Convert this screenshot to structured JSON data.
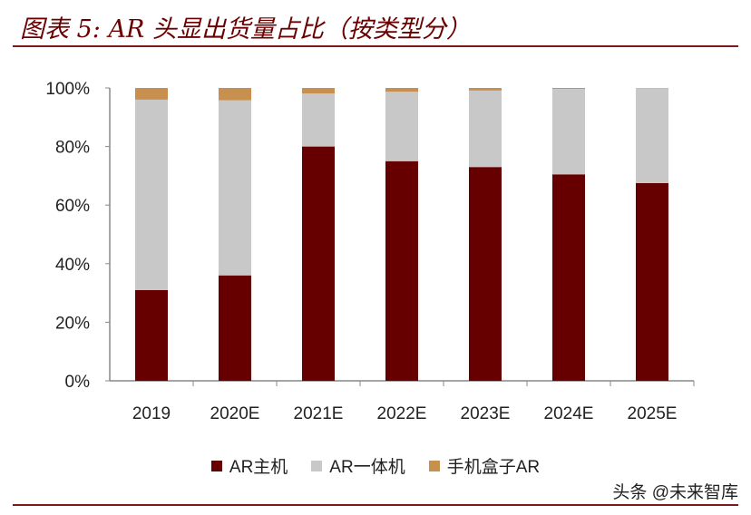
{
  "title": "图表 5: AR 头显出货量占比（按类型分）",
  "watermark": "头条 @未来智库",
  "chart_data": {
    "type": "bar",
    "stacked": true,
    "categories": [
      "2019",
      "2020E",
      "2021E",
      "2022E",
      "2023E",
      "2024E",
      "2025E"
    ],
    "series": [
      {
        "name": "AR主机",
        "color": "#660000",
        "values": [
          31,
          36,
          80,
          75,
          73,
          70.5,
          67.5
        ]
      },
      {
        "name": "AR一体机",
        "color": "#c8c8c8",
        "values": [
          65,
          59.8,
          18.1,
          23.7,
          26.1,
          29.2,
          32.4
        ]
      },
      {
        "name": "手机盒子AR",
        "color": "#c8904f",
        "values": [
          4,
          4.2,
          1.9,
          1.3,
          0.9,
          0.3,
          0.1
        ]
      }
    ],
    "yticks": [
      "0%",
      "20%",
      "40%",
      "60%",
      "80%",
      "100%"
    ],
    "ylim": [
      0,
      100
    ],
    "grid": false,
    "legend": "bottom"
  }
}
